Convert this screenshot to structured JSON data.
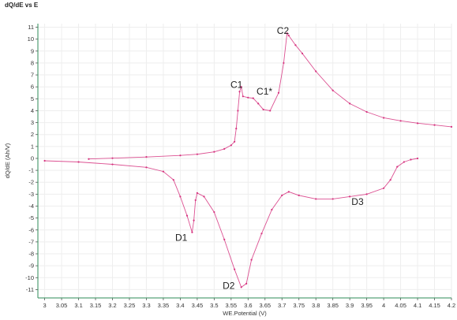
{
  "chart_data": {
    "type": "scatter",
    "title": "dQ/dE vs E",
    "xlabel": "WE.Potential (V)",
    "ylabel": "dQ/dE (Ah/V)",
    "xlim": [
      2.98,
      4.2
    ],
    "ylim": [
      -11.7,
      11.3
    ],
    "x_ticks": [
      "3",
      "3.05",
      "3.1",
      "3.15",
      "3.2",
      "3.25",
      "3.3",
      "3.35",
      "3.4",
      "3.45",
      "3.5",
      "3.55",
      "3.6",
      "3.65",
      "3.7",
      "3.75",
      "3.8",
      "3.85",
      "3.9",
      "3.95",
      "4",
      "4.05",
      "4.1",
      "4.15",
      "4.2"
    ],
    "y_ticks": [
      "11",
      "10",
      "9",
      "8",
      "7",
      "6",
      "5",
      "4",
      "3",
      "2",
      "1",
      "0",
      "-1",
      "-2",
      "-3",
      "-4",
      "-5",
      "-6",
      "-7",
      "-8",
      "-9",
      "-10",
      "-11"
    ],
    "grid": true,
    "series": [
      {
        "color": "#d6337f",
        "points": [
          [
            3.13,
            -0.05
          ],
          [
            3.2,
            0.02
          ],
          [
            3.3,
            0.12
          ],
          [
            3.4,
            0.25
          ],
          [
            3.45,
            0.35
          ],
          [
            3.5,
            0.55
          ],
          [
            3.53,
            0.8
          ],
          [
            3.55,
            1.1
          ],
          [
            3.56,
            1.4
          ],
          [
            3.565,
            2.5
          ],
          [
            3.57,
            4.0
          ],
          [
            3.575,
            5.6
          ],
          [
            3.58,
            6.0
          ],
          [
            3.585,
            5.2
          ],
          [
            3.6,
            5.1
          ],
          [
            3.615,
            5.05
          ],
          [
            3.63,
            4.6
          ],
          [
            3.645,
            4.1
          ],
          [
            3.665,
            4.0
          ],
          [
            3.69,
            5.5
          ],
          [
            3.705,
            8.0
          ],
          [
            3.715,
            10.5
          ],
          [
            3.72,
            10.3
          ],
          [
            3.74,
            9.5
          ],
          [
            3.76,
            8.8
          ],
          [
            3.8,
            7.3
          ],
          [
            3.85,
            5.7
          ],
          [
            3.9,
            4.6
          ],
          [
            3.95,
            3.9
          ],
          [
            4.0,
            3.4
          ],
          [
            4.05,
            3.15
          ],
          [
            4.1,
            2.95
          ],
          [
            4.15,
            2.8
          ],
          [
            4.2,
            2.65
          ]
        ]
      },
      {
        "color": "#d6337f",
        "points": [
          [
            3.0,
            -0.2
          ],
          [
            3.1,
            -0.3
          ],
          [
            3.2,
            -0.5
          ],
          [
            3.3,
            -0.75
          ],
          [
            3.35,
            -1.1
          ],
          [
            3.38,
            -1.8
          ],
          [
            3.4,
            -3.2
          ],
          [
            3.42,
            -4.8
          ],
          [
            3.435,
            -6.2
          ],
          [
            3.44,
            -5.2
          ],
          [
            3.445,
            -3.5
          ],
          [
            3.45,
            -2.9
          ],
          [
            3.47,
            -3.2
          ],
          [
            3.5,
            -4.5
          ],
          [
            3.53,
            -6.8
          ],
          [
            3.56,
            -9.3
          ],
          [
            3.58,
            -10.8
          ],
          [
            3.595,
            -10.5
          ],
          [
            3.61,
            -8.5
          ],
          [
            3.64,
            -6.3
          ],
          [
            3.67,
            -4.3
          ],
          [
            3.7,
            -3.1
          ],
          [
            3.72,
            -2.8
          ],
          [
            3.75,
            -3.1
          ],
          [
            3.8,
            -3.4
          ],
          [
            3.85,
            -3.4
          ],
          [
            3.9,
            -3.2
          ],
          [
            3.95,
            -3.0
          ],
          [
            4.0,
            -2.5
          ],
          [
            4.02,
            -1.8
          ],
          [
            4.04,
            -0.7
          ],
          [
            4.06,
            -0.3
          ],
          [
            4.08,
            -0.1
          ],
          [
            4.1,
            0.0
          ]
        ]
      }
    ],
    "annotations": [
      {
        "text": "C2",
        "x": 3.685,
        "y": 10.45
      },
      {
        "text": "C1",
        "x": 3.548,
        "y": 5.9
      },
      {
        "text": "C1*",
        "x": 3.625,
        "y": 5.35
      },
      {
        "text": "D1",
        "x": 3.385,
        "y": -6.9
      },
      {
        "text": "D3",
        "x": 3.905,
        "y": -3.9
      },
      {
        "text": "D2",
        "x": 3.525,
        "y": -10.95
      }
    ]
  }
}
